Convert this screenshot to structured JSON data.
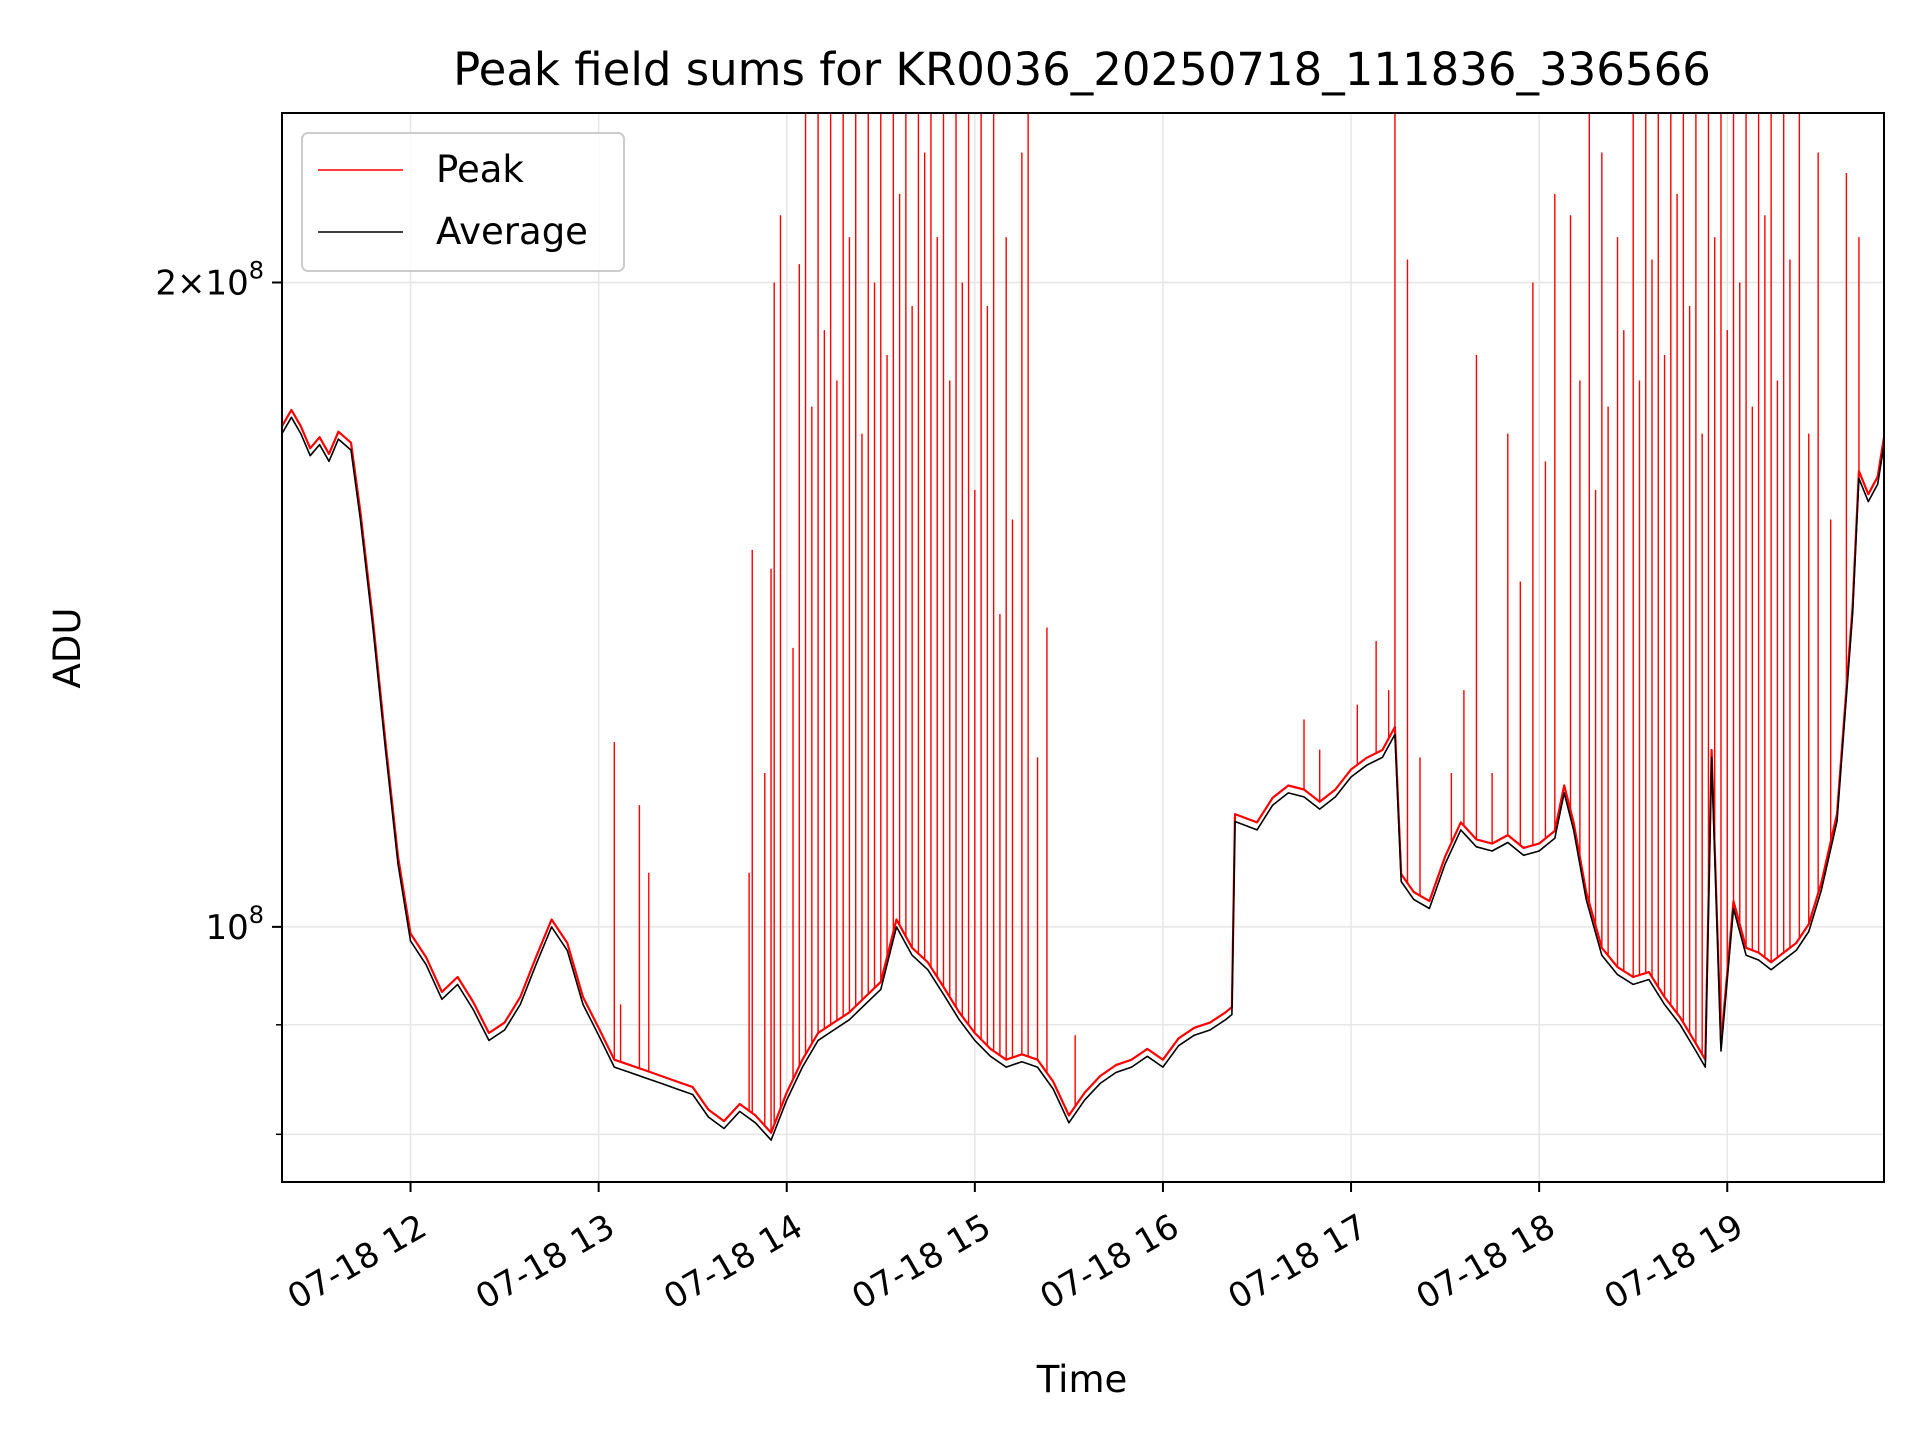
{
  "chart_data": {
    "type": "line",
    "title": "Peak field sums for KR0036_20250718_111836_336566",
    "xlabel": "Time",
    "ylabel": "ADU",
    "y_scale": "log",
    "ylim": [
      76000000,
      240000000
    ],
    "xlim": [
      "2025-07-18 11:19",
      "2025-07-18 19:50"
    ],
    "x_ticks": [
      {
        "value": "2025-07-18 12:00",
        "label": "07-18 12"
      },
      {
        "value": "2025-07-18 13:00",
        "label": "07-18 13"
      },
      {
        "value": "2025-07-18 14:00",
        "label": "07-18 14"
      },
      {
        "value": "2025-07-18 15:00",
        "label": "07-18 15"
      },
      {
        "value": "2025-07-18 16:00",
        "label": "07-18 16"
      },
      {
        "value": "2025-07-18 17:00",
        "label": "07-18 17"
      },
      {
        "value": "2025-07-18 18:00",
        "label": "07-18 18"
      },
      {
        "value": "2025-07-18 19:00",
        "label": "07-18 19"
      }
    ],
    "y_ticks_major": [
      {
        "value": 100000000,
        "label_base": "10",
        "label_exp": "8",
        "label_mult": ""
      },
      {
        "value": 200000000,
        "label_base": "10",
        "label_exp": "8",
        "label_mult": "2×"
      }
    ],
    "y_ticks_minor": [
      80000000,
      90000000
    ],
    "grid": true,
    "legend_position": "top-left",
    "series": [
      {
        "name": "Average",
        "color": "#000000",
        "points": [
          [
            "2025-07-18 11:19",
            170000000.0
          ],
          [
            "2025-07-18 11:22",
            173000000.0
          ],
          [
            "2025-07-18 11:25",
            170000000.0
          ],
          [
            "2025-07-18 11:28",
            166000000.0
          ],
          [
            "2025-07-18 11:31",
            168000000.0
          ],
          [
            "2025-07-18 11:34",
            165000000.0
          ],
          [
            "2025-07-18 11:37",
            169000000.0
          ],
          [
            "2025-07-18 11:41",
            167000000.0
          ],
          [
            "2025-07-18 11:44",
            155000000.0
          ],
          [
            "2025-07-18 11:48",
            138000000.0
          ],
          [
            "2025-07-18 11:52",
            121000000.0
          ],
          [
            "2025-07-18 11:56",
            107000000.0
          ],
          [
            "2025-07-18 12:00",
            98500000.0
          ],
          [
            "2025-07-18 12:05",
            96000000.0
          ],
          [
            "2025-07-18 12:10",
            92500000.0
          ],
          [
            "2025-07-18 12:15",
            94000000.0
          ],
          [
            "2025-07-18 12:20",
            91500000.0
          ],
          [
            "2025-07-18 12:25",
            88500000.0
          ],
          [
            "2025-07-18 12:30",
            89500000.0
          ],
          [
            "2025-07-18 12:35",
            92000000.0
          ],
          [
            "2025-07-18 12:40",
            96000000.0
          ],
          [
            "2025-07-18 12:45",
            100000000.0
          ],
          [
            "2025-07-18 12:50",
            97500000.0
          ],
          [
            "2025-07-18 12:55",
            92000000.0
          ],
          [
            "2025-07-18 13:00",
            89000000.0
          ],
          [
            "2025-07-18 13:05",
            86000000.0
          ],
          [
            "2025-07-18 13:10",
            85500000.0
          ],
          [
            "2025-07-18 13:15",
            85000000.0
          ],
          [
            "2025-07-18 13:20",
            84500000.0
          ],
          [
            "2025-07-18 13:25",
            84000000.0
          ],
          [
            "2025-07-18 13:30",
            83500000.0
          ],
          [
            "2025-07-18 13:35",
            81500000.0
          ],
          [
            "2025-07-18 13:40",
            80500000.0
          ],
          [
            "2025-07-18 13:45",
            82000000.0
          ],
          [
            "2025-07-18 13:50",
            81000000.0
          ],
          [
            "2025-07-18 13:55",
            79500000.0
          ],
          [
            "2025-07-18 14:00",
            83000000.0
          ],
          [
            "2025-07-18 14:05",
            86000000.0
          ],
          [
            "2025-07-18 14:10",
            88500000.0
          ],
          [
            "2025-07-18 14:15",
            89500000.0
          ],
          [
            "2025-07-18 14:20",
            90500000.0
          ],
          [
            "2025-07-18 14:25",
            92000000.0
          ],
          [
            "2025-07-18 14:30",
            93500000.0
          ],
          [
            "2025-07-18 14:35",
            100000000.0
          ],
          [
            "2025-07-18 14:40",
            97000000.0
          ],
          [
            "2025-07-18 14:45",
            95500000.0
          ],
          [
            "2025-07-18 14:50",
            93000000.0
          ],
          [
            "2025-07-18 14:55",
            90500000.0
          ],
          [
            "2025-07-18 15:00",
            88500000.0
          ],
          [
            "2025-07-18 15:05",
            87000000.0
          ],
          [
            "2025-07-18 15:10",
            86000000.0
          ],
          [
            "2025-07-18 15:15",
            86500000.0
          ],
          [
            "2025-07-18 15:20",
            86000000.0
          ],
          [
            "2025-07-18 15:25",
            84000000.0
          ],
          [
            "2025-07-18 15:30",
            81000000.0
          ],
          [
            "2025-07-18 15:35",
            83000000.0
          ],
          [
            "2025-07-18 15:40",
            84500000.0
          ],
          [
            "2025-07-18 15:45",
            85500000.0
          ],
          [
            "2025-07-18 15:50",
            86000000.0
          ],
          [
            "2025-07-18 15:55",
            87000000.0
          ],
          [
            "2025-07-18 16:00",
            86000000.0
          ],
          [
            "2025-07-18 16:05",
            88000000.0
          ],
          [
            "2025-07-18 16:10",
            89000000.0
          ],
          [
            "2025-07-18 16:15",
            89500000.0
          ],
          [
            "2025-07-18 16:20",
            90500000.0
          ],
          [
            "2025-07-18 16:22",
            91000000.0
          ],
          [
            "2025-07-18 16:23",
            112000000.0
          ],
          [
            "2025-07-18 16:30",
            111000000.0
          ],
          [
            "2025-07-18 16:35",
            114000000.0
          ],
          [
            "2025-07-18 16:40",
            115500000.0
          ],
          [
            "2025-07-18 16:45",
            115000000.0
          ],
          [
            "2025-07-18 16:50",
            113500000.0
          ],
          [
            "2025-07-18 16:55",
            115000000.0
          ],
          [
            "2025-07-18 17:00",
            117500000.0
          ],
          [
            "2025-07-18 17:05",
            119000000.0
          ],
          [
            "2025-07-18 17:10",
            120000000.0
          ],
          [
            "2025-07-18 17:14",
            123000000.0
          ],
          [
            "2025-07-18 17:16",
            105000000.0
          ],
          [
            "2025-07-18 17:20",
            103000000.0
          ],
          [
            "2025-07-18 17:25",
            102000000.0
          ],
          [
            "2025-07-18 17:30",
            107000000.0
          ],
          [
            "2025-07-18 17:35",
            111000000.0
          ],
          [
            "2025-07-18 17:40",
            109000000.0
          ],
          [
            "2025-07-18 17:45",
            108500000.0
          ],
          [
            "2025-07-18 17:50",
            109500000.0
          ],
          [
            "2025-07-18 17:55",
            108000000.0
          ],
          [
            "2025-07-18 18:00",
            108500000.0
          ],
          [
            "2025-07-18 18:05",
            110000000.0
          ],
          [
            "2025-07-18 18:08",
            115500000.0
          ],
          [
            "2025-07-18 18:11",
            111000000.0
          ],
          [
            "2025-07-18 18:15",
            103000000.0
          ],
          [
            "2025-07-18 18:20",
            97000000.0
          ],
          [
            "2025-07-18 18:25",
            95000000.0
          ],
          [
            "2025-07-18 18:30",
            94000000.0
          ],
          [
            "2025-07-18 18:35",
            94500000.0
          ],
          [
            "2025-07-18 18:40",
            92000000.0
          ],
          [
            "2025-07-18 18:45",
            90000000.0
          ],
          [
            "2025-07-18 18:50",
            87500000.0
          ],
          [
            "2025-07-18 18:53",
            86000000.0
          ],
          [
            "2025-07-18 18:55",
            120000000.0
          ],
          [
            "2025-07-18 18:58",
            87500000.0
          ],
          [
            "2025-07-18 19:02",
            102000000.0
          ],
          [
            "2025-07-18 19:06",
            97000000.0
          ],
          [
            "2025-07-18 19:10",
            96500000.0
          ],
          [
            "2025-07-18 19:14",
            95500000.0
          ],
          [
            "2025-07-18 19:18",
            96500000.0
          ],
          [
            "2025-07-18 19:22",
            97500000.0
          ],
          [
            "2025-07-18 19:26",
            99500000.0
          ],
          [
            "2025-07-18 19:30",
            104000000.0
          ],
          [
            "2025-07-18 19:35",
            112000000.0
          ],
          [
            "2025-07-18 19:40",
            140000000.0
          ],
          [
            "2025-07-18 19:42",
            162000000.0
          ],
          [
            "2025-07-18 19:45",
            158000000.0
          ],
          [
            "2025-07-18 19:48",
            161000000.0
          ],
          [
            "2025-07-18 19:50",
            168000000.0
          ]
        ]
      },
      {
        "name": "Peak",
        "color": "#ff0000",
        "baseline_offset_fraction": 0.008,
        "spikes": [
          [
            "2025-07-18 13:05",
            122000000.0
          ],
          [
            "2025-07-18 13:07",
            92000000.0
          ],
          [
            "2025-07-18 13:13",
            114000000.0
          ],
          [
            "2025-07-18 13:16",
            106000000.0
          ],
          [
            "2025-07-18 13:48",
            106000000.0
          ],
          [
            "2025-07-18 13:49",
            150000000.0
          ],
          [
            "2025-07-18 13:53",
            118000000.0
          ],
          [
            "2025-07-18 13:55",
            147000000.0
          ],
          [
            "2025-07-18 13:56",
            200000000.0
          ],
          [
            "2025-07-18 13:58",
            215000000.0
          ],
          [
            "2025-07-18 14:02",
            135000000.0
          ],
          [
            "2025-07-18 14:04",
            204000000.0
          ],
          [
            "2025-07-18 14:06",
            240000000.0
          ],
          [
            "2025-07-18 14:08",
            175000000.0
          ],
          [
            "2025-07-18 14:10",
            240000000.0
          ],
          [
            "2025-07-18 14:12",
            190000000.0
          ],
          [
            "2025-07-18 14:14",
            240000000.0
          ],
          [
            "2025-07-18 14:16",
            180000000.0
          ],
          [
            "2025-07-18 14:18",
            240000000.0
          ],
          [
            "2025-07-18 14:20",
            210000000.0
          ],
          [
            "2025-07-18 14:22",
            240000000.0
          ],
          [
            "2025-07-18 14:24",
            170000000.0
          ],
          [
            "2025-07-18 14:26",
            240000000.0
          ],
          [
            "2025-07-18 14:28",
            200000000.0
          ],
          [
            "2025-07-18 14:30",
            240000000.0
          ],
          [
            "2025-07-18 14:32",
            185000000.0
          ],
          [
            "2025-07-18 14:34",
            240000000.0
          ],
          [
            "2025-07-18 14:36",
            220000000.0
          ],
          [
            "2025-07-18 14:38",
            240000000.0
          ],
          [
            "2025-07-18 14:40",
            195000000.0
          ],
          [
            "2025-07-18 14:42",
            240000000.0
          ],
          [
            "2025-07-18 14:44",
            230000000.0
          ],
          [
            "2025-07-18 14:46",
            240000000.0
          ],
          [
            "2025-07-18 14:48",
            210000000.0
          ],
          [
            "2025-07-18 14:50",
            240000000.0
          ],
          [
            "2025-07-18 14:52",
            180000000.0
          ],
          [
            "2025-07-18 14:54",
            240000000.0
          ],
          [
            "2025-07-18 14:56",
            200000000.0
          ],
          [
            "2025-07-18 14:58",
            240000000.0
          ],
          [
            "2025-07-18 15:00",
            160000000.0
          ],
          [
            "2025-07-18 15:02",
            240000000.0
          ],
          [
            "2025-07-18 15:04",
            195000000.0
          ],
          [
            "2025-07-18 15:06",
            240000000.0
          ],
          [
            "2025-07-18 15:08",
            140000000.0
          ],
          [
            "2025-07-18 15:10",
            210000000.0
          ],
          [
            "2025-07-18 15:12",
            155000000.0
          ],
          [
            "2025-07-18 15:15",
            230000000.0
          ],
          [
            "2025-07-18 15:17",
            240000000.0
          ],
          [
            "2025-07-18 15:20",
            120000000.0
          ],
          [
            "2025-07-18 15:23",
            138000000.0
          ],
          [
            "2025-07-18 15:32",
            89000000.0
          ],
          [
            "2025-07-18 16:45",
            125000000.0
          ],
          [
            "2025-07-18 16:50",
            121000000.0
          ],
          [
            "2025-07-18 17:02",
            127000000.0
          ],
          [
            "2025-07-18 17:08",
            136000000.0
          ],
          [
            "2025-07-18 17:12",
            129000000.0
          ],
          [
            "2025-07-18 17:14",
            240000000.0
          ],
          [
            "2025-07-18 17:18",
            205000000.0
          ],
          [
            "2025-07-18 17:22",
            120000000.0
          ],
          [
            "2025-07-18 17:32",
            118000000.0
          ],
          [
            "2025-07-18 17:36",
            129000000.0
          ],
          [
            "2025-07-18 17:40",
            185000000.0
          ],
          [
            "2025-07-18 17:45",
            118000000.0
          ],
          [
            "2025-07-18 17:50",
            170000000.0
          ],
          [
            "2025-07-18 17:54",
            145000000.0
          ],
          [
            "2025-07-18 17:58",
            200000000.0
          ],
          [
            "2025-07-18 18:02",
            165000000.0
          ],
          [
            "2025-07-18 18:05",
            220000000.0
          ],
          [
            "2025-07-18 18:10",
            215000000.0
          ],
          [
            "2025-07-18 18:13",
            180000000.0
          ],
          [
            "2025-07-18 18:16",
            240000000.0
          ],
          [
            "2025-07-18 18:18",
            160000000.0
          ],
          [
            "2025-07-18 18:20",
            230000000.0
          ],
          [
            "2025-07-18 18:22",
            175000000.0
          ],
          [
            "2025-07-18 18:25",
            210000000.0
          ],
          [
            "2025-07-18 18:27",
            190000000.0
          ],
          [
            "2025-07-18 18:30",
            240000000.0
          ],
          [
            "2025-07-18 18:32",
            180000000.0
          ],
          [
            "2025-07-18 18:34",
            240000000.0
          ],
          [
            "2025-07-18 18:36",
            205000000.0
          ],
          [
            "2025-07-18 18:38",
            240000000.0
          ],
          [
            "2025-07-18 18:40",
            185000000.0
          ],
          [
            "2025-07-18 18:42",
            240000000.0
          ],
          [
            "2025-07-18 18:44",
            220000000.0
          ],
          [
            "2025-07-18 18:46",
            240000000.0
          ],
          [
            "2025-07-18 18:48",
            195000000.0
          ],
          [
            "2025-07-18 18:50",
            240000000.0
          ],
          [
            "2025-07-18 18:52",
            170000000.0
          ],
          [
            "2025-07-18 18:54",
            240000000.0
          ],
          [
            "2025-07-18 18:56",
            210000000.0
          ],
          [
            "2025-07-18 18:58",
            240000000.0
          ],
          [
            "2025-07-18 19:00",
            190000000.0
          ],
          [
            "2025-07-18 19:02",
            240000000.0
          ],
          [
            "2025-07-18 19:04",
            200000000.0
          ],
          [
            "2025-07-18 19:06",
            240000000.0
          ],
          [
            "2025-07-18 19:08",
            175000000.0
          ],
          [
            "2025-07-18 19:10",
            240000000.0
          ],
          [
            "2025-07-18 19:12",
            215000000.0
          ],
          [
            "2025-07-18 19:14",
            240000000.0
          ],
          [
            "2025-07-18 19:16",
            180000000.0
          ],
          [
            "2025-07-18 19:18",
            240000000.0
          ],
          [
            "2025-07-18 19:20",
            205000000.0
          ],
          [
            "2025-07-18 19:23",
            240000000.0
          ],
          [
            "2025-07-18 19:26",
            170000000.0
          ],
          [
            "2025-07-18 19:29",
            230000000.0
          ],
          [
            "2025-07-18 19:33",
            155000000.0
          ],
          [
            "2025-07-18 19:38",
            225000000.0
          ],
          [
            "2025-07-18 19:42",
            210000000.0
          ]
        ]
      }
    ],
    "legend": [
      {
        "label": "Peak",
        "color": "#ff0000"
      },
      {
        "label": "Average",
        "color": "#000000"
      }
    ]
  }
}
